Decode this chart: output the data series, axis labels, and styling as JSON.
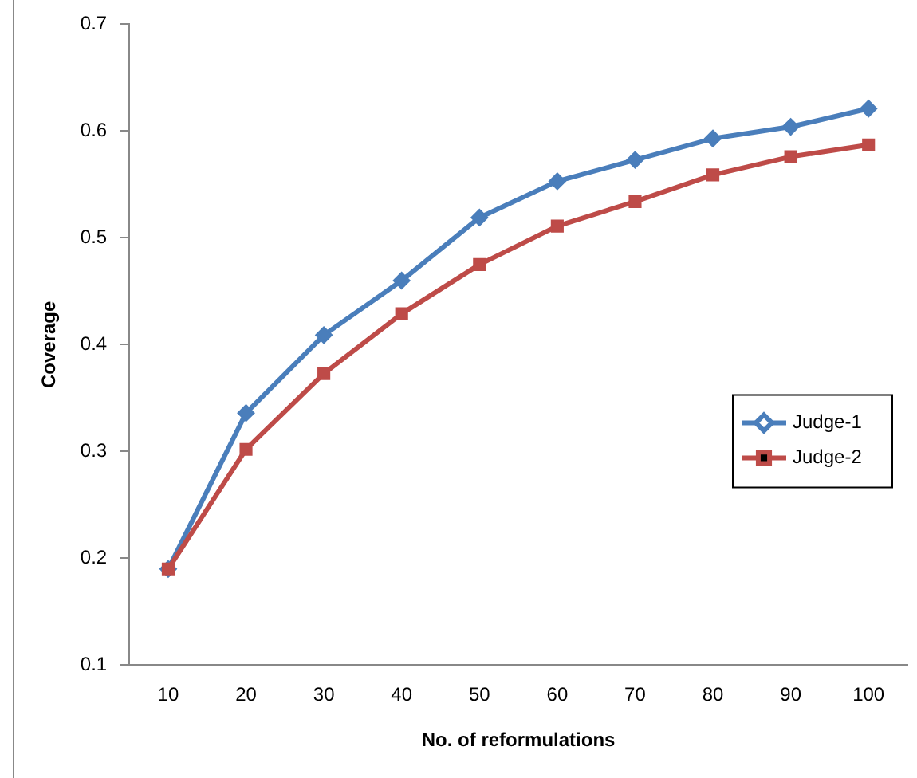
{
  "chart_data": {
    "type": "line",
    "xlabel": "No. of reformulations",
    "ylabel": "Coverage",
    "categories": [
      "10",
      "20",
      "30",
      "40",
      "50",
      "60",
      "70",
      "80",
      "90",
      "100"
    ],
    "series": [
      {
        "name": "Judge-1",
        "color": "#4a7ebb",
        "marker": "diamond",
        "values": [
          0.19,
          0.336,
          0.409,
          0.46,
          0.519,
          0.553,
          0.573,
          0.593,
          0.604,
          0.621
        ]
      },
      {
        "name": "Judge-2",
        "color": "#be4b48",
        "marker": "square",
        "values": [
          0.19,
          0.302,
          0.373,
          0.429,
          0.475,
          0.511,
          0.534,
          0.559,
          0.576,
          0.587
        ]
      }
    ],
    "ylim": [
      0.1,
      0.7
    ],
    "yticks": [
      0.1,
      0.2,
      0.3,
      0.4,
      0.5,
      0.6,
      0.7
    ],
    "grid": false,
    "legend": "right",
    "line_style": "solid"
  }
}
